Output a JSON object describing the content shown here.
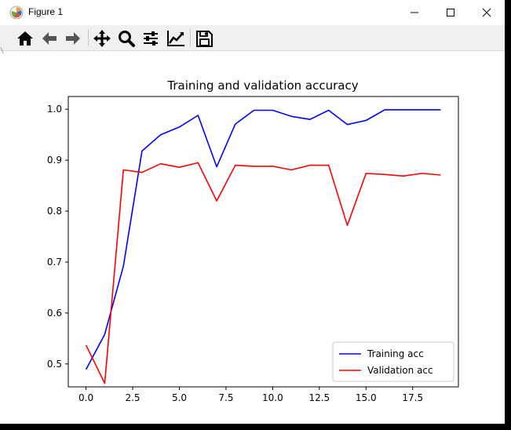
{
  "window": {
    "title": "Figure 1",
    "app_icon": "matplotlib-icon",
    "controls": [
      "minimize-icon",
      "maximize-icon",
      "close-icon"
    ]
  },
  "toolbar": {
    "buttons": [
      {
        "name": "home-button",
        "icon": "home-icon"
      },
      {
        "name": "back-button",
        "icon": "arrow-left-icon"
      },
      {
        "name": "forward-button",
        "icon": "arrow-right-icon"
      },
      {
        "name": "pan-button",
        "icon": "move-icon"
      },
      {
        "name": "zoom-button",
        "icon": "magnifier-icon"
      },
      {
        "name": "configure-subplots-button",
        "icon": "sliders-icon"
      },
      {
        "name": "edit-axis-button",
        "icon": "line-chart-icon"
      },
      {
        "name": "save-button",
        "icon": "floppy-disk-icon"
      }
    ]
  },
  "chart_data": {
    "type": "line",
    "title": "Training and validation accuracy",
    "xlabel": "",
    "ylabel": "",
    "xlim": [
      -0.95,
      19.95
    ],
    "ylim": [
      0.455,
      1.025
    ],
    "xticks": [
      0.0,
      2.5,
      5.0,
      7.5,
      10.0,
      12.5,
      15.0,
      17.5
    ],
    "xtick_labels": [
      "0.0",
      "2.5",
      "5.0",
      "7.5",
      "10.0",
      "12.5",
      "15.0",
      "17.5"
    ],
    "yticks": [
      0.5,
      0.6,
      0.7,
      0.8,
      0.9,
      1.0
    ],
    "ytick_labels": [
      "0.5",
      "0.6",
      "0.7",
      "0.8",
      "0.9",
      "1.0"
    ],
    "grid": false,
    "legend_position": "lower-right",
    "x": [
      0,
      1,
      2,
      3,
      4,
      5,
      6,
      7,
      8,
      9,
      10,
      11,
      12,
      13,
      14,
      15,
      16,
      17,
      18,
      19
    ],
    "series": [
      {
        "name": "Training acc",
        "color": "#0000ff",
        "values": [
          0.489,
          0.558,
          0.692,
          0.918,
          0.95,
          0.965,
          0.988,
          0.887,
          0.971,
          0.998,
          0.998,
          0.986,
          0.98,
          0.998,
          0.97,
          0.978,
          0.999,
          0.999,
          0.999,
          0.999
        ]
      },
      {
        "name": "Validation acc",
        "color": "#ff0000",
        "values": [
          0.537,
          0.462,
          0.881,
          0.876,
          0.893,
          0.886,
          0.895,
          0.82,
          0.89,
          0.888,
          0.888,
          0.881,
          0.89,
          0.89,
          0.772,
          0.874,
          0.872,
          0.869,
          0.874,
          0.871
        ]
      }
    ]
  }
}
